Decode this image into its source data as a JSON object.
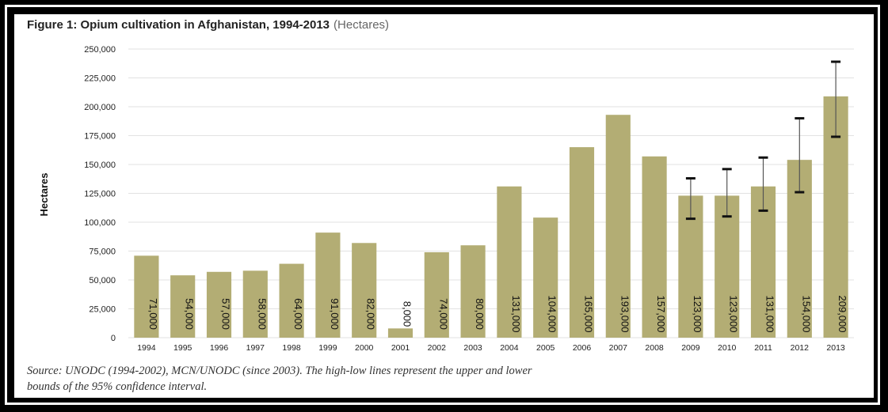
{
  "figure": {
    "title": "Figure 1: Opium cultivation in Afghanistan, 1994-2013",
    "unit": "(Hectares)",
    "source_line1": "Source: UNODC (1994-2002), MCN/UNODC (since 2003). The high-low lines represent the upper and lower",
    "source_line2": "bounds of the 95% confidence interval."
  },
  "chart_data": {
    "type": "bar",
    "title": "Figure 1: Opium cultivation in Afghanistan, 1994-2013 (Hectares)",
    "xlabel": "",
    "ylabel": "Hectares",
    "ylim": [
      0,
      250000
    ],
    "yticks": [
      0,
      25000,
      50000,
      75000,
      100000,
      125000,
      150000,
      175000,
      200000,
      225000,
      250000
    ],
    "ytick_labels": [
      "0",
      "25,000",
      "50,000",
      "75,000",
      "100,000",
      "125,000",
      "150,000",
      "175,000",
      "200,000",
      "225,000",
      "250,000"
    ],
    "grid": true,
    "bar_color": "#b3ad74",
    "categories": [
      "1994",
      "1995",
      "1996",
      "1997",
      "1998",
      "1999",
      "2000",
      "2001",
      "2002",
      "2003",
      "2004",
      "2005",
      "2006",
      "2007",
      "2008",
      "2009",
      "2010",
      "2011",
      "2012",
      "2013"
    ],
    "values": [
      71000,
      54000,
      57000,
      58000,
      64000,
      91000,
      82000,
      8000,
      74000,
      80000,
      131000,
      104000,
      165000,
      193000,
      157000,
      123000,
      123000,
      131000,
      154000,
      209000
    ],
    "data_labels": [
      "71,000",
      "54,000",
      "57,000",
      "58,000",
      "64,000",
      "91,000",
      "82,000",
      "8,000",
      "74,000",
      "80,000",
      "131,000",
      "104,000",
      "165,000",
      "193,000",
      "157,000",
      "123,000",
      "123,000",
      "131,000",
      "154,000",
      "209,000"
    ],
    "error_bars": [
      {
        "category": "2009",
        "low": 103000,
        "high": 138000
      },
      {
        "category": "2010",
        "low": 105000,
        "high": 146000
      },
      {
        "category": "2011",
        "low": 110000,
        "high": 156000
      },
      {
        "category": "2012",
        "low": 126000,
        "high": 190000
      },
      {
        "category": "2013",
        "low": 174000,
        "high": 239000
      }
    ]
  }
}
